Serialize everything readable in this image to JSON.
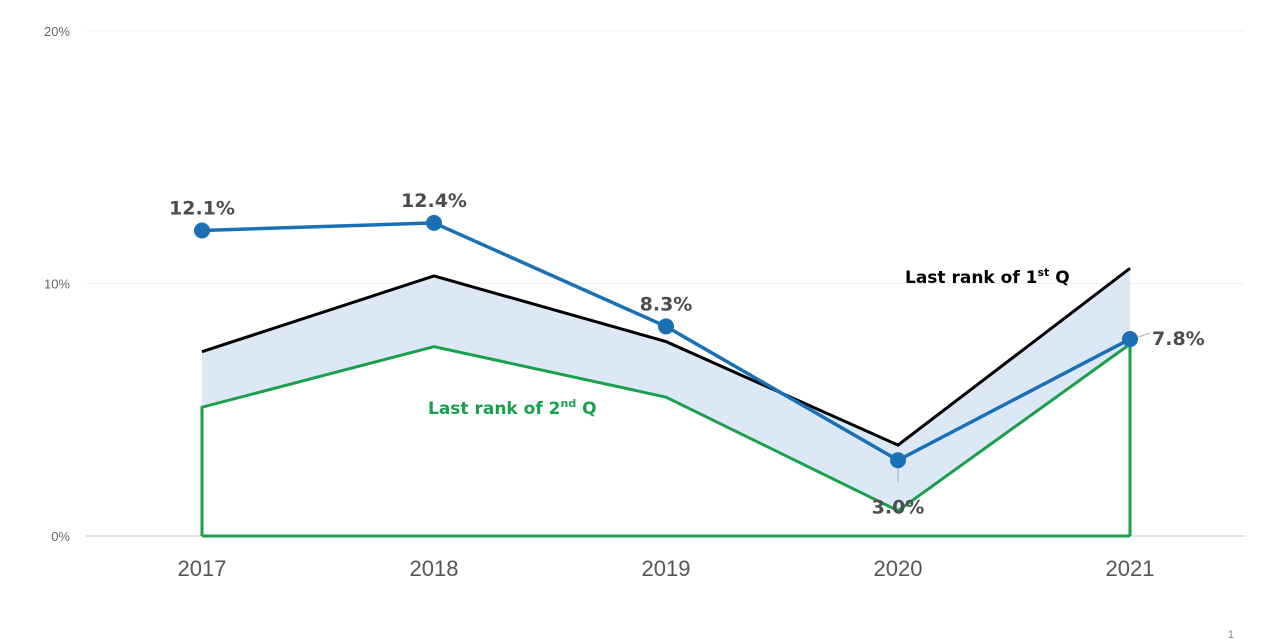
{
  "chart_data": {
    "type": "line",
    "categories": [
      "2017",
      "2018",
      "2019",
      "2020",
      "2021"
    ],
    "ylim": [
      0,
      20
    ],
    "yticks": [
      "0%",
      "10%",
      "20%"
    ],
    "grid": true,
    "series": [
      {
        "name": "",
        "values": [
          12.1,
          12.4,
          8.3,
          3.0,
          7.8
        ],
        "color": "#1a6fb5",
        "labels": [
          "12.1%",
          "12.4%",
          "8.3%",
          "3.0%",
          "7.8%"
        ]
      },
      {
        "name": "Last rank of 1st Q",
        "values": [
          7.3,
          10.3,
          7.7,
          3.6,
          10.6
        ],
        "color": "#000000"
      },
      {
        "name": "Last rank of 2nd Q",
        "values": [
          5.1,
          7.5,
          5.5,
          1.0,
          7.6
        ],
        "color": "#1aa04a"
      }
    ],
    "band_fill": "#dce8f5",
    "annotations": {
      "first_q": {
        "main": "Last rank of 1",
        "sup": "st",
        "tail": " Q"
      },
      "second_q": {
        "main": "Last rank of 2",
        "sup": "nd",
        "tail": " Q"
      }
    }
  },
  "page_number": "1"
}
